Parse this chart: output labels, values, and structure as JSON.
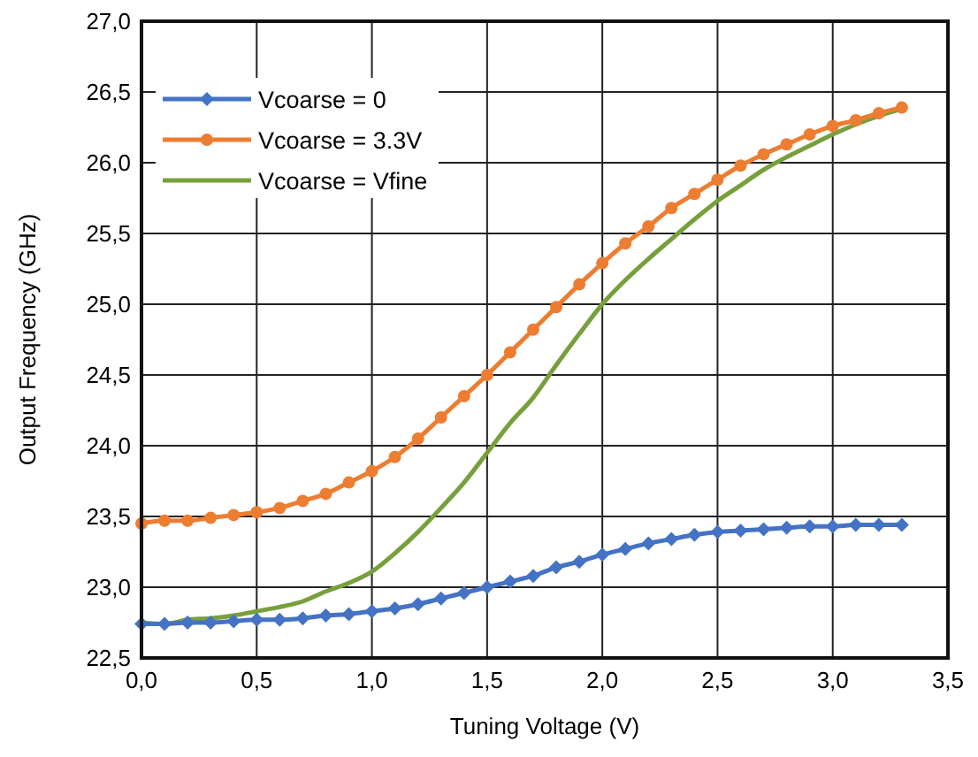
{
  "chart_data": {
    "type": "line",
    "xlabel": "Tuning Voltage (V)",
    "ylabel": "Output Frequency  (GHz)",
    "x": [
      0,
      0.1,
      0.2,
      0.3,
      0.4,
      0.5,
      0.6,
      0.7,
      0.8,
      0.9,
      1.0,
      1.1,
      1.2,
      1.3,
      1.4,
      1.5,
      1.6,
      1.7,
      1.8,
      1.9,
      2.0,
      2.1,
      2.2,
      2.3,
      2.4,
      2.5,
      2.6,
      2.7,
      2.8,
      2.9,
      3.0,
      3.1,
      3.2,
      3.3
    ],
    "series": [
      {
        "name": "Vcoarse = 0",
        "color": "#4472c4",
        "marker": "diamond",
        "values": [
          22.74,
          22.74,
          22.75,
          22.75,
          22.76,
          22.77,
          22.77,
          22.78,
          22.8,
          22.81,
          22.83,
          22.85,
          22.88,
          22.92,
          22.96,
          23.0,
          23.04,
          23.08,
          23.14,
          23.18,
          23.23,
          23.27,
          23.31,
          23.34,
          23.37,
          23.39,
          23.4,
          23.41,
          23.42,
          23.43,
          23.43,
          23.44,
          23.44,
          23.44
        ]
      },
      {
        "name": "Vcoarse = 3.3V",
        "color": "#ed7d31",
        "marker": "circle",
        "values": [
          23.45,
          23.47,
          23.47,
          23.49,
          23.51,
          23.53,
          23.56,
          23.61,
          23.66,
          23.74,
          23.82,
          23.92,
          24.05,
          24.2,
          24.35,
          24.5,
          24.66,
          24.82,
          24.98,
          25.14,
          25.29,
          25.43,
          25.55,
          25.68,
          25.78,
          25.88,
          25.98,
          26.06,
          26.13,
          26.2,
          26.26,
          26.3,
          26.35,
          26.39
        ]
      },
      {
        "name": "Vcoarse = Vfine",
        "color": "#77a03c",
        "marker": "none",
        "values": [
          22.75,
          22.74,
          22.77,
          22.78,
          22.8,
          22.83,
          22.86,
          22.9,
          22.97,
          23.03,
          23.11,
          23.24,
          23.39,
          23.56,
          23.74,
          23.95,
          24.16,
          24.34,
          24.57,
          24.79,
          25.0,
          25.17,
          25.32,
          25.46,
          25.6,
          25.73,
          25.84,
          25.95,
          26.04,
          26.12,
          26.2,
          26.27,
          26.33,
          26.38
        ]
      }
    ],
    "xlim": [
      0,
      3.5
    ],
    "xticks": [
      {
        "value": 0,
        "label": "0,0"
      },
      {
        "value": 0.5,
        "label": "0,5"
      },
      {
        "value": 1,
        "label": "1,0"
      },
      {
        "value": 1.5,
        "label": "1,5"
      },
      {
        "value": 2,
        "label": "2,0"
      },
      {
        "value": 2.5,
        "label": "2,5"
      },
      {
        "value": 3,
        "label": "3,0"
      },
      {
        "value": 3.5,
        "label": "3,5"
      }
    ],
    "ylim": [
      22.5,
      27
    ],
    "yticks": [
      {
        "value": 22.5,
        "label": "22,5"
      },
      {
        "value": 23,
        "label": "23,0"
      },
      {
        "value": 23.5,
        "label": "23,5"
      },
      {
        "value": 24,
        "label": "24,0"
      },
      {
        "value": 24.5,
        "label": "24,5"
      },
      {
        "value": 25,
        "label": "25,0"
      },
      {
        "value": 25.5,
        "label": "25,5"
      },
      {
        "value": 26,
        "label": "26,0"
      },
      {
        "value": 26.5,
        "label": "26,5"
      },
      {
        "value": 27,
        "label": "27,0"
      }
    ],
    "grid": true,
    "legend": "top left"
  }
}
